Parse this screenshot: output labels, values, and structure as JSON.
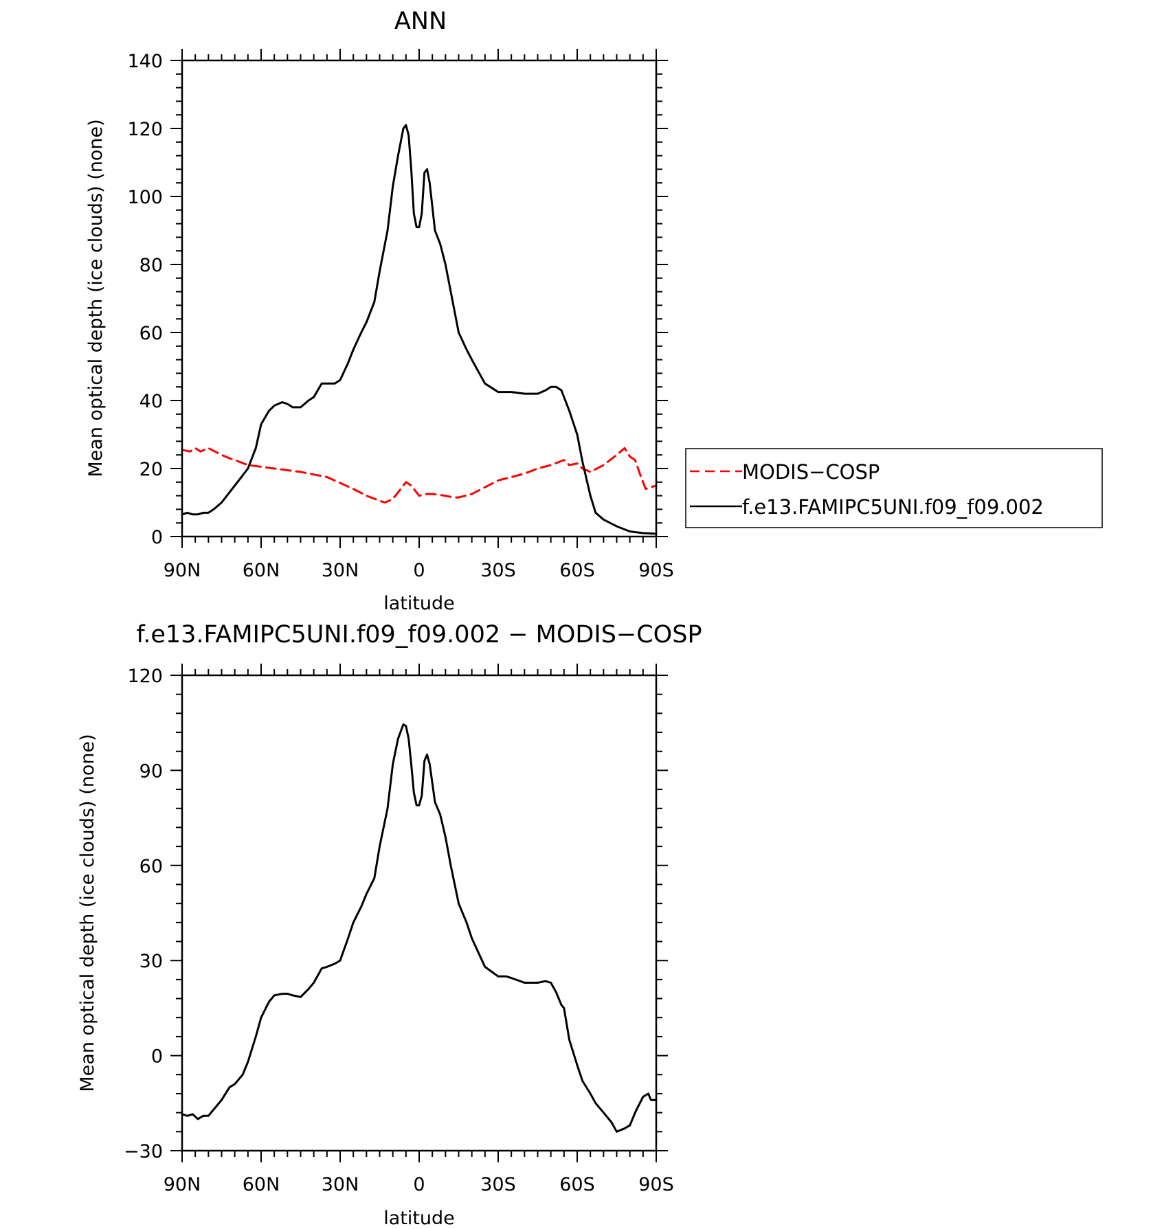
{
  "chart_data": [
    {
      "type": "line",
      "title": "ANN",
      "xlabel": "latitude",
      "ylabel": "Mean optical depth (ice clouds) (none)",
      "xlim": [
        90,
        -90
      ],
      "ylim": [
        0,
        140
      ],
      "x_ticks": [
        90,
        60,
        30,
        0,
        -30,
        -60,
        -90
      ],
      "x_tick_labels": [
        "90N",
        "60N",
        "30N",
        "0",
        "30S",
        "60S",
        "90S"
      ],
      "y_ticks": [
        0,
        20,
        40,
        60,
        80,
        100,
        120,
        140
      ],
      "y_tick_labels": [
        "0",
        "20",
        "40",
        "60",
        "80",
        "100",
        "120",
        "140"
      ],
      "grid": false,
      "legend_position": "right",
      "series": [
        {
          "name": "MODIS−COSP",
          "color": "#ff0000",
          "style": "dashed",
          "x": [
            90,
            87,
            85,
            83,
            80,
            75,
            72,
            70,
            65,
            60,
            55,
            45,
            35,
            25,
            20,
            15,
            13,
            10,
            7,
            5,
            3,
            0,
            -3,
            -5,
            -10,
            -13,
            -15,
            -20,
            -25,
            -30,
            -35,
            -40,
            -45,
            -50,
            -55,
            -57,
            -60,
            -62,
            -65,
            -70,
            -75,
            -78,
            -80,
            -82,
            -84,
            -86,
            -88,
            -90
          ],
          "y": [
            25.5,
            25,
            26,
            25,
            26,
            24,
            23,
            22.5,
            21,
            20.5,
            20,
            19,
            17.5,
            14,
            12,
            10.5,
            10,
            11,
            14,
            16,
            15,
            12,
            12.5,
            12.5,
            12,
            11.5,
            11.5,
            12.5,
            14.5,
            16.5,
            17.5,
            18.5,
            20,
            21,
            22.5,
            21,
            21.5,
            20,
            19,
            21,
            24,
            26,
            23.5,
            22.5,
            18,
            14,
            14.5,
            15
          ]
        },
        {
          "name": "f.e13.FAMIPC5UNI.f09_f09.002",
          "color": "#000000",
          "style": "solid",
          "x": [
            90,
            88,
            86,
            84,
            82,
            80,
            78,
            75,
            70,
            67,
            65,
            62,
            60,
            57,
            55,
            52,
            50,
            48,
            45,
            42,
            40,
            37,
            35,
            32,
            30,
            27,
            25,
            22,
            20,
            17,
            15,
            12,
            10,
            8,
            6,
            5,
            4,
            3,
            2,
            1,
            0,
            -1,
            -2,
            -3,
            -4,
            -5,
            -6,
            -8,
            -10,
            -12,
            -15,
            -18,
            -20,
            -25,
            -30,
            -33,
            -35,
            -40,
            -45,
            -48,
            -50,
            -52,
            -54,
            -55,
            -57,
            -60,
            -62,
            -65,
            -67,
            -70,
            -75,
            -80,
            -85,
            -90
          ],
          "y": [
            6.5,
            7,
            6.5,
            6.5,
            7,
            7,
            8,
            10,
            15,
            18,
            20,
            26,
            33,
            37,
            38.5,
            39.5,
            39,
            38,
            38,
            40,
            41,
            45,
            45,
            45,
            46,
            51,
            55,
            60,
            63,
            69,
            78,
            90,
            103,
            112,
            120,
            121,
            118,
            108,
            95,
            91,
            91,
            95,
            107,
            108,
            104,
            97,
            90,
            86,
            80,
            72,
            60,
            55,
            52,
            45,
            42.5,
            42.5,
            42.5,
            42,
            42,
            43,
            44,
            44,
            43,
            41,
            37,
            30,
            22,
            12,
            7,
            5,
            3,
            1.5,
            1,
            0.8
          ]
        }
      ]
    },
    {
      "type": "line",
      "title": "f.e13.FAMIPC5UNI.f09_f09.002 − MODIS−COSP",
      "xlabel": "latitude",
      "ylabel": "Mean optical depth (ice clouds) (none)",
      "xlim": [
        90,
        -90
      ],
      "ylim": [
        -30,
        120
      ],
      "x_ticks": [
        90,
        60,
        30,
        0,
        -30,
        -60,
        -90
      ],
      "x_tick_labels": [
        "90N",
        "60N",
        "30N",
        "0",
        "30S",
        "60S",
        "90S"
      ],
      "y_ticks": [
        -30,
        0,
        30,
        60,
        90,
        120
      ],
      "y_tick_labels": [
        "−30",
        "0",
        "30",
        "60",
        "90",
        "120"
      ],
      "grid": false,
      "series": [
        {
          "color": "#000000",
          "style": "solid",
          "x": [
            90,
            88,
            86,
            84,
            82,
            80,
            78,
            75,
            72,
            70,
            67,
            65,
            62,
            60,
            57,
            55,
            52,
            50,
            48,
            45,
            42,
            40,
            37,
            35,
            32,
            30,
            27,
            25,
            22,
            20,
            17,
            15,
            12,
            10,
            8,
            6,
            5,
            4,
            3,
            2,
            1,
            0,
            -1,
            -2,
            -3,
            -4,
            -5,
            -6,
            -8,
            -10,
            -12,
            -15,
            -18,
            -20,
            -25,
            -30,
            -33,
            -35,
            -40,
            -45,
            -48,
            -50,
            -52,
            -54,
            -55,
            -57,
            -60,
            -62,
            -65,
            -67,
            -70,
            -73,
            -75,
            -78,
            -80,
            -82,
            -85,
            -87,
            -88,
            -90
          ],
          "y": [
            -18.5,
            -19,
            -18.5,
            -20,
            -19,
            -19,
            -17,
            -14,
            -10,
            -9,
            -6,
            -2,
            6,
            12,
            17,
            19,
            19.5,
            19.5,
            19,
            18.5,
            21,
            23,
            27.5,
            28,
            29,
            30,
            37,
            42,
            47,
            51,
            56,
            66,
            78,
            92,
            100,
            104.5,
            104,
            100,
            92,
            83,
            79,
            79,
            82,
            93,
            95,
            92,
            86,
            80,
            76,
            69,
            60,
            48,
            42,
            37,
            28,
            25,
            25,
            24.5,
            23,
            23,
            23.5,
            23,
            20,
            16,
            15,
            5,
            -3,
            -8,
            -12,
            -15,
            -18,
            -21,
            -24,
            -23,
            -22,
            -18,
            -13,
            -12,
            -14,
            -14
          ]
        }
      ]
    }
  ]
}
